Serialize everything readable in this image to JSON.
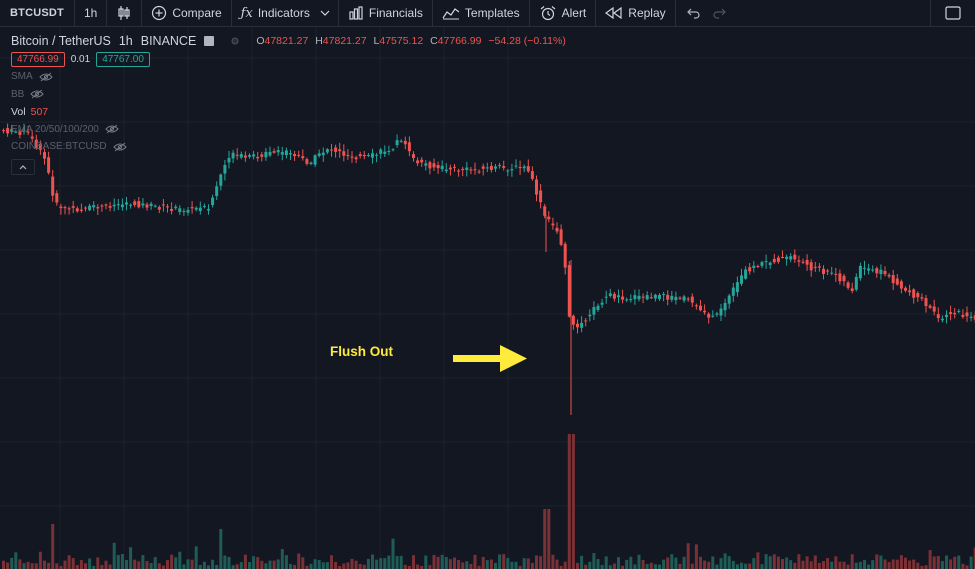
{
  "toolbar": {
    "symbol": "BTCUSDT",
    "interval": "1h",
    "compare": "Compare",
    "indicators": "Indicators",
    "financials": "Financials",
    "templates": "Templates",
    "alert": "Alert",
    "replay": "Replay"
  },
  "legend": {
    "title": "Bitcoin / TetherUS",
    "interval": "1h",
    "exchange": "BINANCE",
    "open_label": "O",
    "open": "47821.27",
    "high_label": "H",
    "high": "47821.27",
    "low_label": "L",
    "low": "47575.12",
    "close_label": "C",
    "close": "47766.99",
    "change": "−54.28 (−0.11%)",
    "sell_price": "47766.99",
    "spread": "0.01",
    "buy_price": "47767.00",
    "indicators": {
      "sma": "SMA",
      "bb": "BB",
      "vol_label": "Vol",
      "vol_value": "507",
      "ema": "EMA 20/50/100/200",
      "coinbase": "COINBASE:BTCUSD"
    }
  },
  "annotation": {
    "text": "Flush Out",
    "color": "#ffeb3b"
  },
  "colors": {
    "background": "#131722",
    "grid": "#1e222d",
    "up": "#26a69a",
    "down": "#ef5350",
    "text": "#b2b5be"
  },
  "icons": [
    "candles-icon",
    "plus-circle-icon",
    "fx-icon",
    "bar-chart-icon",
    "line-chart-icon",
    "alarm-clock-icon",
    "rewind-icon",
    "undo-icon",
    "redo-icon",
    "fullscreen-icon",
    "eye-off-icon"
  ]
}
